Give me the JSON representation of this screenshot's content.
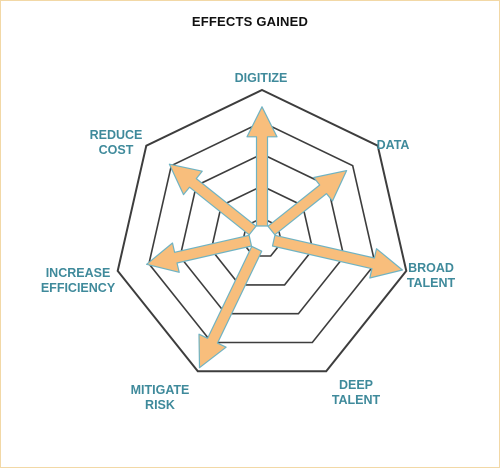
{
  "title": "EFFECTS GAINED",
  "colors": {
    "label": "#3f8a9b",
    "ring": "#3d3d3d",
    "arrow_fill": "#f8be7c",
    "arrow_stroke": "#6fb3c3"
  },
  "axes": [
    {
      "line1": "DIGITIZE",
      "line2": "",
      "level": 0.9
    },
    {
      "line1": "DATA",
      "line2": "",
      "level": 0.72
    },
    {
      "line1": "BROAD",
      "line2": "TALENT",
      "level": 1.0
    },
    {
      "line1": "DEEP",
      "line2": "TALENT",
      "level": 0.0
    },
    {
      "line1": "MITIGATE",
      "line2": "RISK",
      "level": 1.0
    },
    {
      "line1": "INCREASE",
      "line2": "EFFICIENCY",
      "level": 0.8
    },
    {
      "line1": "REDUCE",
      "line2": "COST",
      "level": 0.8
    }
  ]
}
